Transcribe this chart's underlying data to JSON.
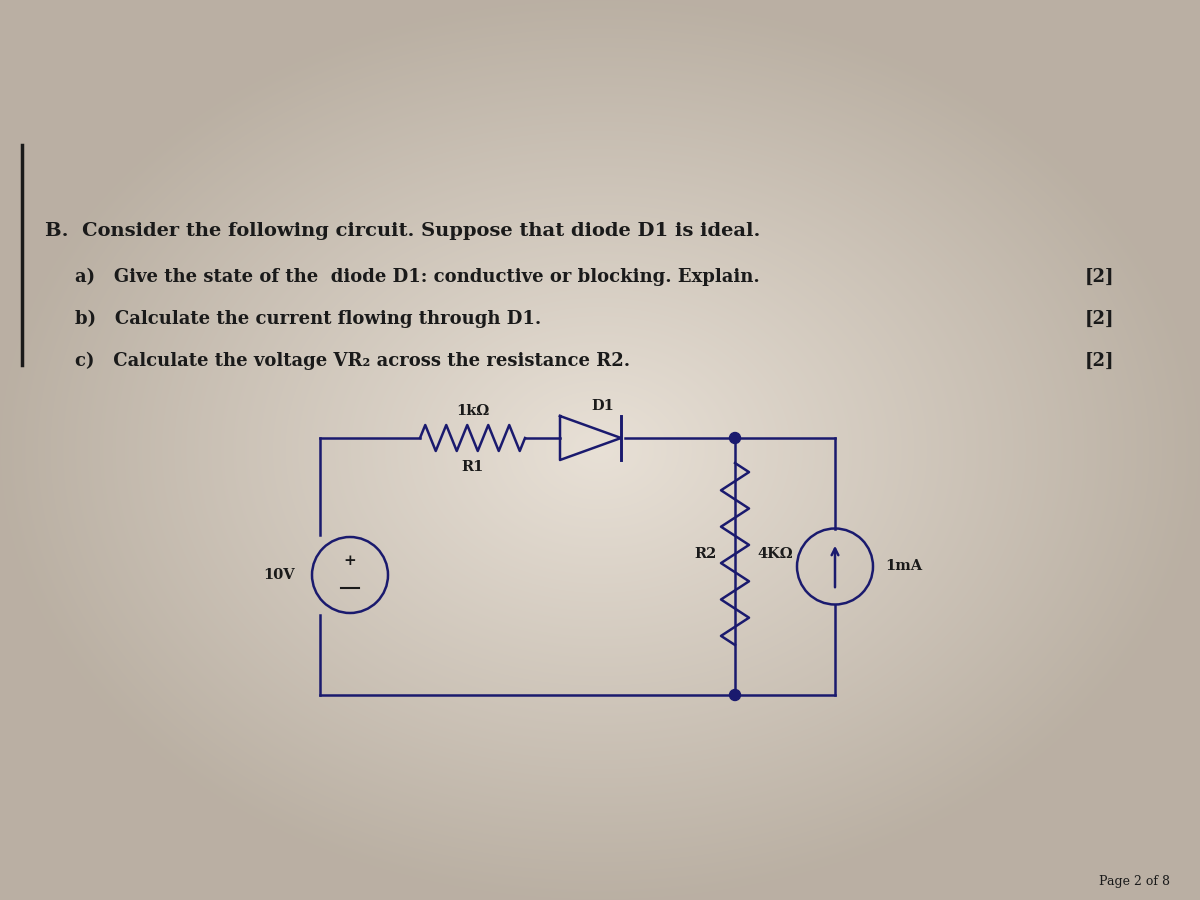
{
  "bg_color_center": "#e8e0d5",
  "bg_color_edge": "#b0a898",
  "text_color": "#1a1a1a",
  "circuit_color": "#1a1a6e",
  "title_line": "B.  Consider the following circuit. Suppose that diode D1 is ideal.",
  "qa_lines": [
    "a)   Give the state of the  diode D1: conductive or blocking. Explain.",
    "b)   Calculate the current flowing through D1.",
    "c)   Calculate the voltage VR₂ across the resistance R2."
  ],
  "marks": [
    "[2]",
    "[2]",
    "[2]"
  ],
  "page_text": "Page 2 of 8",
  "r1_label": "1kΩ",
  "r1_sublabel": "R1",
  "r2_label": "4KΩ",
  "r2_sublabel": "R2",
  "d1_label": "D1",
  "v_label": "10V",
  "i_label": "1mA",
  "font_size_title": 14,
  "font_size_body": 13,
  "font_size_circuit": 10.5
}
